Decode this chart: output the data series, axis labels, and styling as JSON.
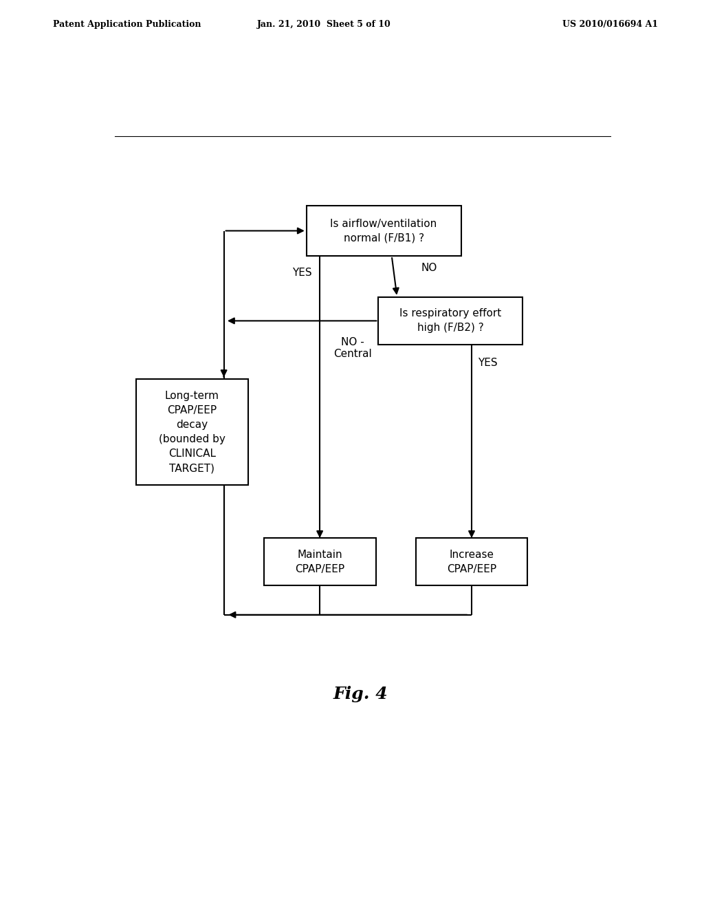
{
  "header_left": "Patent Application Publication",
  "header_mid": "Jan. 21, 2010  Sheet 5 of 10",
  "header_right": "US 2010/016694 A1",
  "fig_label": "Fig. 4",
  "box1_text": "Is airflow/ventilation\nnormal (F/B1) ?",
  "box2_text": "Is respiratory effort\nhigh (F/B2) ?",
  "box3_text": "Long-term\nCPAP/EEP\ndecay\n(bounded by\nCLINICAL\nTARGET)",
  "box4_text": "Maintain\nCPAP/EEP",
  "box5_text": "Increase\nCPAP/EEP",
  "yes1_label": "YES",
  "no1_label": "NO",
  "no2_label": "NO -\nCentral",
  "yes2_label": "YES",
  "bg_color": "#ffffff",
  "line_color": "#000000",
  "text_color": "#000000",
  "font_size": 11,
  "header_font_size": 9,
  "fig_font_size": 18
}
